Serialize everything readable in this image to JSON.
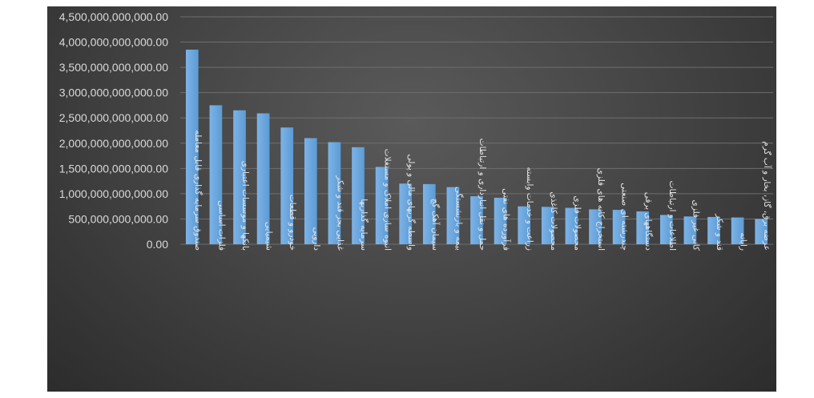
{
  "chart_data": {
    "type": "bar",
    "title": "",
    "xlabel": "",
    "ylabel": "",
    "ylim": [
      0,
      4500000000000
    ],
    "yticks": [
      0,
      500000000000,
      1000000000000,
      1500000000000,
      2000000000000,
      2500000000000,
      3000000000000,
      3500000000000,
      4000000000000,
      4500000000000
    ],
    "ytick_labels": [
      "0.00",
      "500,000,000,000.00",
      "1,000,000,000,000.00",
      "1,500,000,000,000.00",
      "2,000,000,000,000.00",
      "2,500,000,000,000.00",
      "3,000,000,000,000.00",
      "3,500,000,000,000.00",
      "4,000,000,000,000.00",
      "4,500,000,000,000.00"
    ],
    "grid": true,
    "categories": [
      "صندوق سرمایه گذاری قابل معامله",
      "فلزات اساسی",
      "بانکها و موسسات اعتباری",
      "شیمیایی",
      "خودرو و قطعات",
      "دارویی",
      "غذایی بجز قند و شکر",
      "سرمایه گذاریها",
      "انبوه سازی املاک و مستغلات",
      "واسطه گریهای مالی و پولی",
      "سیمان آهک گچ",
      "بیمه و بازنشستگی",
      "حمل و نقل انبارداری و ارتباطات",
      "فرآورده های نفتی",
      "زراعت و خدمات وابسته",
      "محصولات کاغذی",
      "محصولات فلزی",
      "استخراج کانه های فلزی",
      "چندرشته ای صنعتی",
      "دستگاههای برقی",
      "اطلاعات و ارتباطات",
      "کانی غیر فلزی",
      "قند و شکر",
      "رایانه",
      "عرضه برق، گاز، بخار و آب گرم"
    ],
    "values": [
      3850000000000,
      2750000000000,
      2650000000000,
      2590000000000,
      2310000000000,
      2100000000000,
      2020000000000,
      1920000000000,
      1530000000000,
      1200000000000,
      1190000000000,
      1130000000000,
      950000000000,
      920000000000,
      750000000000,
      740000000000,
      720000000000,
      690000000000,
      680000000000,
      650000000000,
      580000000000,
      550000000000,
      540000000000,
      530000000000,
      500000000000
    ],
    "colors": {
      "bar": "#5b9bd5",
      "bar_light": "#7db3e6",
      "grid": "#6e6e6e",
      "text": "#d9d9d9"
    }
  }
}
